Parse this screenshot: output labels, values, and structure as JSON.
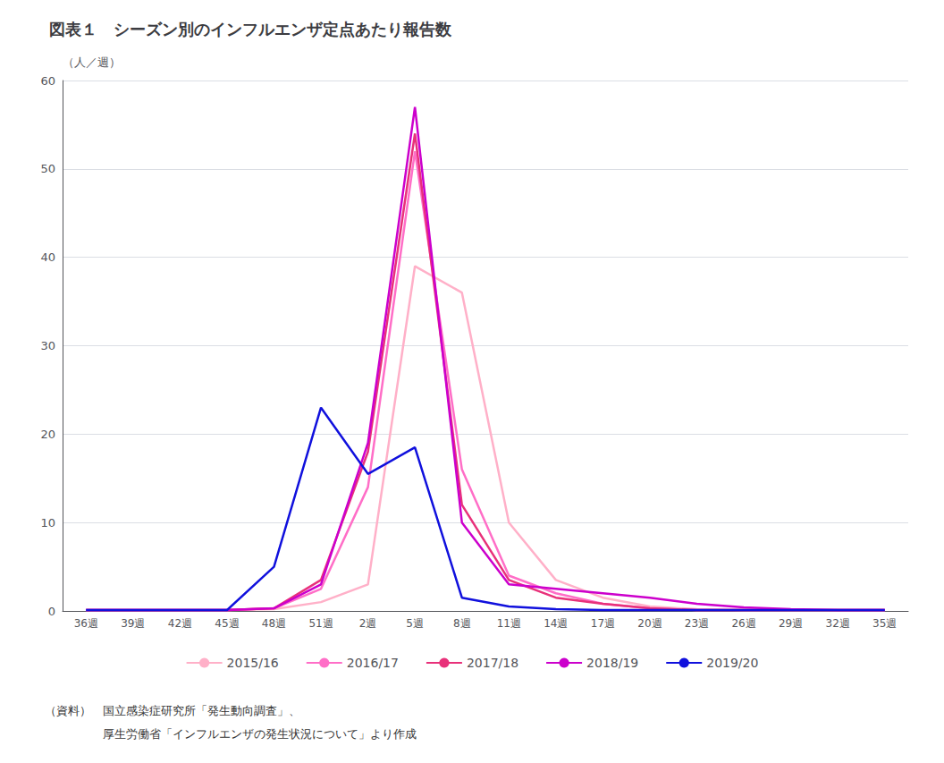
{
  "chart_data": {
    "type": "line",
    "title": "図表１　シーズン別のインフルエンザ定点あたり報告数",
    "ylabel": "（人／週）",
    "annotations": [
      "（資料）　国立感染症研究所「発生動向調査」、",
      "　　　　　厚生労働省「インフルエンザの発生状況について」より作成"
    ],
    "categories": [
      "36週",
      "39週",
      "42週",
      "45週",
      "48週",
      "51週",
      "2週",
      "5週",
      "8週",
      "11週",
      "14週",
      "17週",
      "20週",
      "23週",
      "26週",
      "29週",
      "32週",
      "35週"
    ],
    "series": [
      {
        "name": "2015/16",
        "color": "#FFB0C8",
        "values": [
          0.1,
          0.1,
          0.1,
          0.1,
          0.2,
          1.0,
          3.0,
          39.0,
          36.0,
          10.0,
          3.5,
          1.5,
          0.5,
          0.2,
          0.1,
          0.1,
          0.1,
          0.1
        ]
      },
      {
        "name": "2016/17",
        "color": "#FF6EC7",
        "values": [
          0.1,
          0.1,
          0.1,
          0.1,
          0.3,
          2.5,
          14.0,
          52.0,
          16.0,
          4.0,
          2.0,
          0.8,
          0.3,
          0.1,
          0.1,
          0.1,
          0.1,
          0.1
        ]
      },
      {
        "name": "2017/18",
        "color": "#E8317A",
        "values": [
          0.1,
          0.1,
          0.1,
          0.1,
          0.3,
          3.5,
          18.0,
          54.0,
          12.0,
          3.5,
          1.5,
          0.8,
          0.3,
          0.1,
          0.1,
          0.1,
          0.1,
          0.1
        ]
      },
      {
        "name": "2018/19",
        "color": "#CC00CC",
        "values": [
          0.1,
          0.1,
          0.1,
          0.1,
          0.3,
          3.0,
          19.0,
          57.0,
          10.0,
          3.0,
          2.5,
          2.0,
          1.5,
          0.8,
          0.4,
          0.2,
          0.1,
          0.1
        ]
      },
      {
        "name": "2019/20",
        "color": "#1010DD",
        "values": [
          0.1,
          0.1,
          0.1,
          0.1,
          5.0,
          23.0,
          15.5,
          18.5,
          1.5,
          0.5,
          0.2,
          0.1,
          0.1,
          0.1,
          0.1,
          0.1,
          0.1,
          0.1
        ]
      }
    ],
    "ylim": [
      0,
      60
    ],
    "yticks": [
      0,
      10,
      20,
      30,
      40,
      50,
      60
    ],
    "grid": true,
    "legend": "bottom"
  }
}
